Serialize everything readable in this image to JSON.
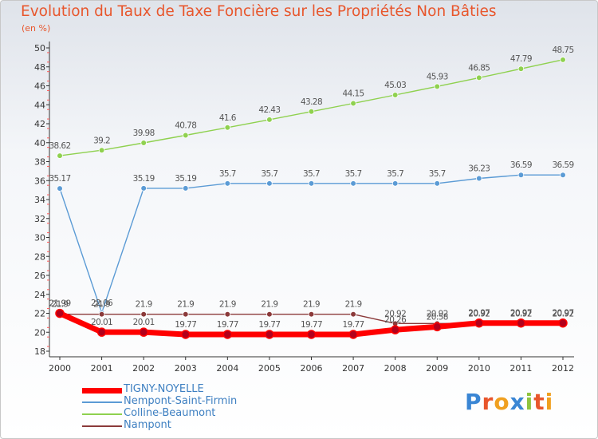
{
  "header": {
    "title": "Evolution du Taux de Taxe Foncière sur les Propriétés Non Bâties",
    "unit": "(en %)"
  },
  "brand": {
    "name": "Proxiti"
  },
  "chart_data": {
    "type": "line",
    "title": "Evolution du Taux de Taxe Foncière sur les Propriétés Non Bâties",
    "xlabel": "",
    "ylabel": "(en %)",
    "ylim": [
      18,
      50
    ],
    "yticks": [
      18,
      20,
      22,
      24,
      26,
      28,
      30,
      32,
      34,
      36,
      38,
      40,
      42,
      44,
      46,
      48,
      50
    ],
    "grid": false,
    "legend_position": "bottom-left",
    "categories": [
      "2000",
      "2001",
      "2002",
      "2003",
      "2004",
      "2005",
      "2006",
      "2007",
      "2008",
      "2009",
      "2010",
      "2011",
      "2012"
    ],
    "series": [
      {
        "name": "Colline-Beaumont",
        "color": "#8fd14f",
        "values": [
          38.62,
          39.2,
          39.98,
          40.78,
          41.6,
          42.43,
          43.28,
          44.15,
          45.03,
          45.93,
          46.85,
          47.79,
          48.75
        ],
        "labels": [
          "38.62",
          "39.2",
          "39.98",
          "40.78",
          "41.6",
          "42.43",
          "43.28",
          "44.15",
          "45.03",
          "45.93",
          "46.85",
          "47.79",
          "48.75"
        ]
      },
      {
        "name": "Nempont-Saint-Firmin",
        "color": "#5b9bd5",
        "values": [
          35.17,
          22.06,
          35.19,
          35.19,
          35.7,
          35.7,
          35.7,
          35.7,
          35.7,
          35.7,
          36.23,
          36.59,
          36.59
        ],
        "labels": [
          "35.17",
          "22.06",
          "35.19",
          "35.19",
          "35.7",
          "35.7",
          "35.7",
          "35.7",
          "35.7",
          "35.7",
          "36.23",
          "36.59",
          "36.59"
        ]
      },
      {
        "name": "Nampont",
        "color": "#8b3a3a",
        "values": [
          21.9,
          21.9,
          21.9,
          21.9,
          21.9,
          21.9,
          21.9,
          21.9,
          20.92,
          20.92,
          20.92,
          20.92,
          20.92
        ],
        "labels": [
          "21.9",
          "21.9",
          "21.9",
          "21.9",
          "21.9",
          "21.9",
          "21.9",
          "21.9",
          "20.92",
          "20.92",
          "20.92",
          "20.92",
          "20.92"
        ]
      },
      {
        "name": "TIGNY-NOYELLE",
        "color": "#ff0000",
        "values": [
          21.99,
          20.01,
          20.01,
          19.77,
          19.77,
          19.77,
          19.77,
          19.77,
          20.26,
          20.58,
          20.97,
          20.97,
          20.97
        ],
        "labels": [
          "21.99",
          "20.01",
          "20.01",
          "19.77",
          "19.77",
          "19.77",
          "19.77",
          "19.77",
          "20.26",
          "20.58",
          "20.97",
          "20.97",
          "20.97"
        ]
      }
    ],
    "legend": [
      {
        "name": "TIGNY-NOYELLE",
        "color": "#ff0000"
      },
      {
        "name": "Nempont-Saint-Firmin",
        "color": "#5b9bd5"
      },
      {
        "name": "Colline-Beaumont",
        "color": "#8fd14f"
      },
      {
        "name": "Nampont",
        "color": "#8b3a3a"
      }
    ]
  }
}
